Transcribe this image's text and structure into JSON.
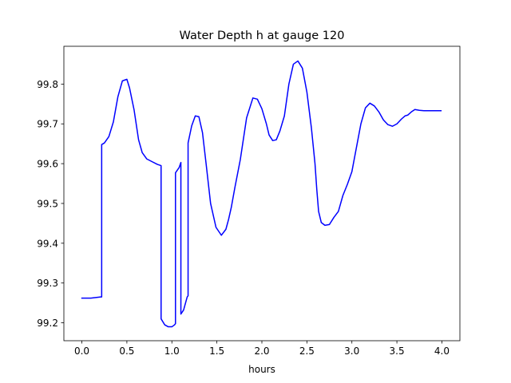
{
  "chart_data": {
    "type": "line",
    "title": "Water Depth h at gauge 120",
    "xlabel": "hours",
    "ylabel": "",
    "xlim": [
      -0.2,
      4.2
    ],
    "ylim": [
      99.155,
      99.895
    ],
    "x_ticks": [
      0.0,
      0.5,
      1.0,
      1.5,
      2.0,
      2.5,
      3.0,
      3.5,
      4.0
    ],
    "x_tick_labels": [
      "0.0",
      "0.5",
      "1.0",
      "1.5",
      "2.0",
      "2.5",
      "3.0",
      "3.5",
      "4.0"
    ],
    "y_ticks": [
      99.2,
      99.3,
      99.4,
      99.5,
      99.6,
      99.7,
      99.8
    ],
    "y_tick_labels": [
      "99.2",
      "99.3",
      "99.4",
      "99.5",
      "99.6",
      "99.7",
      "99.8"
    ],
    "grid": false,
    "legend": "none",
    "series": [
      {
        "color": "#0000ff",
        "x": [
          0.0,
          0.1,
          0.21,
          0.22,
          0.22,
          0.25,
          0.3,
          0.35,
          0.4,
          0.45,
          0.5,
          0.53,
          0.58,
          0.63,
          0.67,
          0.72,
          0.78,
          0.84,
          0.88,
          0.88,
          0.92,
          0.96,
          1.0,
          1.03,
          1.04,
          1.04,
          1.08,
          1.1,
          1.1,
          1.13,
          1.17,
          1.18,
          1.18,
          1.22,
          1.26,
          1.3,
          1.34,
          1.38,
          1.43,
          1.49,
          1.55,
          1.6,
          1.63,
          1.66,
          1.7,
          1.76,
          1.83,
          1.9,
          1.95,
          2.0,
          2.05,
          2.08,
          2.12,
          2.16,
          2.2,
          2.25,
          2.3,
          2.35,
          2.4,
          2.45,
          2.5,
          2.55,
          2.59,
          2.61,
          2.63,
          2.66,
          2.7,
          2.75,
          2.8,
          2.85,
          2.9,
          2.95,
          3.0,
          3.05,
          3.1,
          3.15,
          3.2,
          3.25,
          3.3,
          3.35,
          3.4,
          3.45,
          3.5,
          3.55,
          3.59,
          3.62,
          3.66,
          3.7,
          3.75,
          3.8,
          3.83,
          3.87,
          3.92,
          3.97,
          3.99
        ],
        "y": [
          99.262,
          99.262,
          99.265,
          99.265,
          99.648,
          99.652,
          99.668,
          99.705,
          99.768,
          99.808,
          99.812,
          99.79,
          99.735,
          99.66,
          99.628,
          99.612,
          99.605,
          99.598,
          99.595,
          99.21,
          99.195,
          99.19,
          99.19,
          99.195,
          99.198,
          99.577,
          99.59,
          99.603,
          99.222,
          99.232,
          99.265,
          99.268,
          99.652,
          99.695,
          99.72,
          99.718,
          99.678,
          99.6,
          99.5,
          99.44,
          99.42,
          99.435,
          99.46,
          99.49,
          99.54,
          99.61,
          99.715,
          99.765,
          99.762,
          99.738,
          99.7,
          99.672,
          99.658,
          99.66,
          99.682,
          99.72,
          99.8,
          99.85,
          99.858,
          99.84,
          99.78,
          99.69,
          99.6,
          99.535,
          99.48,
          99.452,
          99.445,
          99.447,
          99.465,
          99.48,
          99.52,
          99.548,
          99.58,
          99.64,
          99.7,
          99.74,
          99.752,
          99.745,
          99.73,
          99.71,
          99.698,
          99.694,
          99.7,
          99.712,
          99.72,
          99.722,
          99.73,
          99.736,
          99.734,
          99.733,
          99.733,
          99.733,
          99.733,
          99.733,
          99.733
        ]
      }
    ]
  }
}
